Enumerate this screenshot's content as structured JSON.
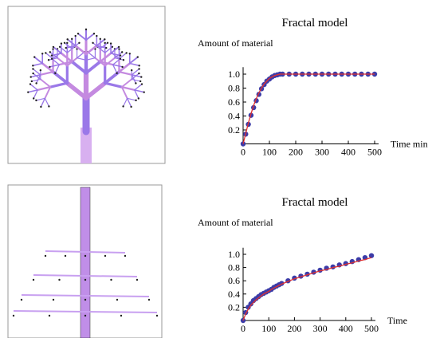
{
  "chart_data": [
    {
      "type": "line",
      "title": "Fractal model",
      "ylabel": "Amount of material",
      "xlabel": "Time min",
      "x": [
        0,
        10,
        20,
        30,
        40,
        50,
        60,
        70,
        80,
        90,
        100,
        110,
        120,
        130,
        140,
        150,
        175,
        200,
        225,
        250,
        275,
        300,
        325,
        350,
        375,
        400,
        425,
        450,
        475,
        500
      ],
      "series": [
        {
          "color": "#3c3ca8",
          "mode": "markers",
          "values": [
            0,
            0.14,
            0.28,
            0.41,
            0.52,
            0.62,
            0.71,
            0.79,
            0.85,
            0.9,
            0.93,
            0.96,
            0.98,
            0.99,
            1,
            1,
            1,
            1,
            1,
            1,
            1,
            1,
            1,
            1,
            1,
            1,
            1,
            1,
            1,
            1
          ]
        },
        {
          "color": "#e03030",
          "mode": "line",
          "values": [
            0,
            0.15,
            0.3,
            0.43,
            0.55,
            0.65,
            0.73,
            0.8,
            0.86,
            0.9,
            0.94,
            0.96,
            0.98,
            0.99,
            1,
            1,
            1,
            1,
            1,
            1,
            1,
            1,
            1,
            1,
            1,
            1,
            1,
            1,
            1,
            1
          ]
        }
      ],
      "xlim": [
        0,
        500
      ],
      "ylim": [
        0,
        1.1
      ],
      "xticks": [
        0,
        100,
        200,
        300,
        400,
        500
      ],
      "yticks": [
        0.2,
        0.4,
        0.6,
        0.8,
        {
          "value": 1,
          "label": "1.0"
        }
      ]
    },
    {
      "type": "line",
      "title": "Fractal model",
      "ylabel": "Amount of material",
      "xlabel": "Time",
      "x": [
        0,
        10,
        20,
        30,
        40,
        50,
        60,
        70,
        80,
        90,
        100,
        110,
        120,
        130,
        140,
        150,
        175,
        200,
        225,
        250,
        275,
        300,
        325,
        350,
        375,
        400,
        425,
        450,
        475,
        500
      ],
      "series": [
        {
          "color": "#3c3ca8",
          "mode": "markers",
          "values": [
            0,
            0.12,
            0.2,
            0.25,
            0.3,
            0.33,
            0.36,
            0.39,
            0.41,
            0.43,
            0.45,
            0.47,
            0.5,
            0.52,
            0.54,
            0.56,
            0.6,
            0.64,
            0.67,
            0.7,
            0.73,
            0.76,
            0.79,
            0.81,
            0.84,
            0.86,
            0.89,
            0.92,
            0.95,
            0.98
          ]
        },
        {
          "color": "#e03030",
          "mode": "line",
          "values": [
            0,
            0.1,
            0.17,
            0.23,
            0.27,
            0.31,
            0.34,
            0.37,
            0.4,
            0.42,
            0.44,
            0.47,
            0.49,
            0.51,
            0.53,
            0.55,
            0.59,
            0.63,
            0.66,
            0.69,
            0.72,
            0.75,
            0.77,
            0.8,
            0.82,
            0.85,
            0.87,
            0.9,
            0.92,
            0.95
          ]
        }
      ],
      "xlim": [
        0,
        500
      ],
      "ylim": [
        0,
        1.1
      ],
      "xticks": [
        0,
        100,
        200,
        300,
        400,
        500
      ],
      "yticks": [
        0.2,
        0.4,
        0.6,
        0.8,
        {
          "value": 1,
          "label": "1.0"
        }
      ]
    }
  ]
}
